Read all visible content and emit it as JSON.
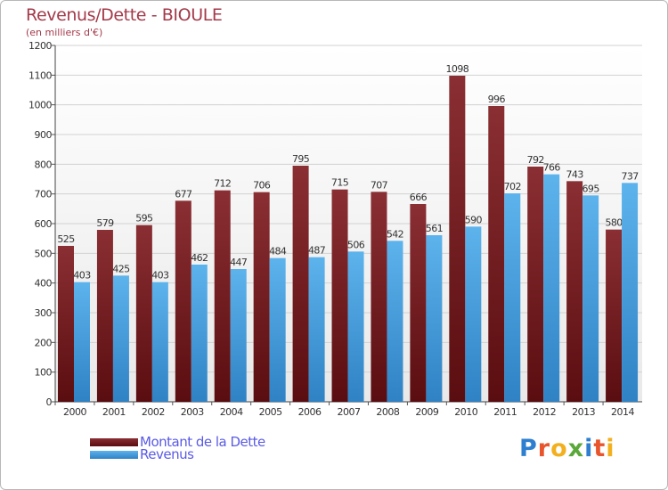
{
  "chart_data": {
    "type": "bar",
    "title": "Revenus/Dette - BIOULE",
    "subtitle": "(en milliers d'€)",
    "categories": [
      "2000",
      "2001",
      "2002",
      "2003",
      "2004",
      "2005",
      "2006",
      "2007",
      "2008",
      "2009",
      "2010",
      "2011",
      "2012",
      "2013",
      "2014"
    ],
    "series": [
      {
        "name": "Montant de la Dette",
        "color": "#7a2127",
        "values": [
          525,
          579,
          595,
          677,
          712,
          706,
          795,
          715,
          707,
          666,
          1098,
          996,
          792,
          743,
          580
        ]
      },
      {
        "name": "Revenus",
        "color": "#4aa3e0",
        "values": [
          403,
          425,
          403,
          462,
          447,
          484,
          487,
          506,
          542,
          561,
          590,
          702,
          766,
          695,
          737
        ]
      }
    ],
    "ylim": [
      0,
      1200
    ],
    "yticks": [
      0,
      100,
      200,
      300,
      400,
      500,
      600,
      700,
      800,
      900,
      1000,
      1100,
      1200
    ],
    "grid": true,
    "legend": "bottom-left"
  },
  "logo": {
    "text": "Proxiti",
    "letters": [
      {
        "ch": "P",
        "color": "#2f7fd1"
      },
      {
        "ch": "r",
        "color": "#e8542b"
      },
      {
        "ch": "o",
        "color": "#f2b01e"
      },
      {
        "ch": "x",
        "color": "#5aa83a"
      },
      {
        "ch": "i",
        "color": "#2f7fd1"
      },
      {
        "ch": "t",
        "color": "#e8542b"
      },
      {
        "ch": "i",
        "color": "#f2b01e"
      }
    ]
  }
}
